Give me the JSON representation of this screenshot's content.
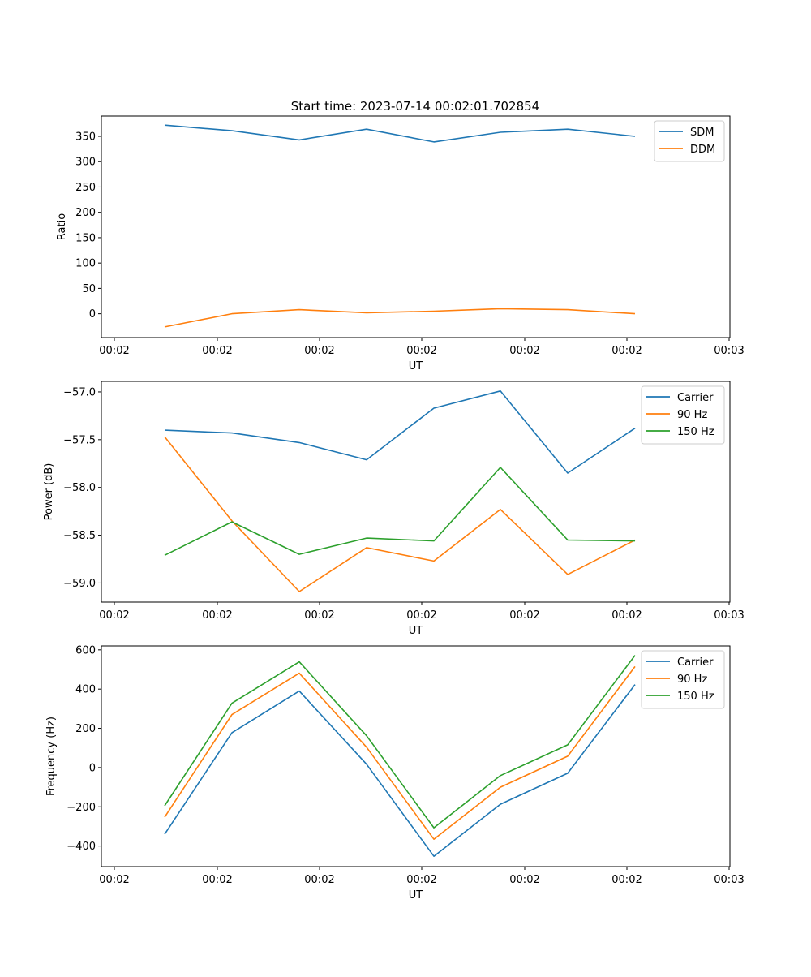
{
  "figure": {
    "title": "Start time: 2023-07-14 00:02:01.702854"
  },
  "chart_data": [
    {
      "type": "line",
      "title": "Start time: 2023-07-14 00:02:01.702854",
      "xlabel": "UT",
      "ylabel": "Ratio",
      "x": [
        1,
        2,
        3,
        4,
        5,
        6,
        7,
        8
      ],
      "xlim": [
        0.8,
        9.2
      ],
      "xticks": [
        1,
        2.5,
        4,
        5.5,
        7,
        8.5,
        10
      ],
      "xtick_labels": [
        "00:02",
        "00:02",
        "00:02",
        "00:02",
        "00:02",
        "00:02",
        "00:03"
      ],
      "ylim": [
        -47,
        390
      ],
      "yticks": [
        0,
        50,
        100,
        150,
        200,
        250,
        300,
        350
      ],
      "ytick_labels": [
        "0",
        "50",
        "100",
        "150",
        "200",
        "250",
        "300",
        "350"
      ],
      "grid": false,
      "legend": "top-right",
      "series": [
        {
          "name": "SDM",
          "color": "#1f77b4",
          "values": [
            372,
            361,
            343,
            364,
            339,
            358,
            364,
            350
          ]
        },
        {
          "name": "DDM",
          "color": "#ff7f0e",
          "values": [
            -26,
            0,
            8,
            2,
            5,
            10,
            8,
            0
          ]
        }
      ]
    },
    {
      "type": "line",
      "title": "",
      "xlabel": "UT",
      "ylabel": "Power (dB)",
      "x": [
        1,
        2,
        3,
        4,
        5,
        6,
        7,
        8
      ],
      "ylim": [
        -59.2,
        -56.89
      ],
      "yticks": [
        -59.0,
        -58.5,
        -58.0,
        -57.5,
        -57.0
      ],
      "ytick_labels": [
        "−59.0",
        "−58.5",
        "−58.0",
        "−57.5",
        "−57.0"
      ],
      "xtick_labels": [
        "00:02",
        "00:02",
        "00:02",
        "00:02",
        "00:02",
        "00:02",
        "00:03"
      ],
      "grid": false,
      "legend": "top-right",
      "series": [
        {
          "name": "Carrier",
          "color": "#1f77b4",
          "values": [
            -57.4,
            -57.43,
            -57.53,
            -57.71,
            -57.17,
            -56.99,
            -57.85,
            -57.38
          ]
        },
        {
          "name": "90 Hz",
          "color": "#ff7f0e",
          "values": [
            -57.47,
            -58.35,
            -59.09,
            -58.63,
            -58.77,
            -58.23,
            -58.91,
            -58.55
          ]
        },
        {
          "name": "150 Hz",
          "color": "#2ca02c",
          "values": [
            -58.71,
            -58.36,
            -58.7,
            -58.53,
            -58.56,
            -57.79,
            -58.55,
            -58.56
          ]
        }
      ]
    },
    {
      "type": "line",
      "title": "",
      "xlabel": "UT",
      "ylabel": "Frequency (Hz)",
      "x": [
        1,
        2,
        3,
        4,
        5,
        6,
        7,
        8
      ],
      "ylim": [
        -505,
        620
      ],
      "yticks": [
        -400,
        -200,
        0,
        200,
        400,
        600
      ],
      "ytick_labels": [
        "−400",
        "−200",
        "0",
        "200",
        "400",
        "600"
      ],
      "xtick_labels": [
        "00:02",
        "00:02",
        "00:02",
        "00:02",
        "00:02",
        "00:02",
        "00:03"
      ],
      "grid": false,
      "legend": "top-right",
      "series": [
        {
          "name": "Carrier",
          "color": "#1f77b4",
          "values": [
            -340,
            178,
            390,
            17,
            -452,
            -187,
            -29,
            423
          ]
        },
        {
          "name": "90 Hz",
          "color": "#ff7f0e",
          "values": [
            -253,
            270,
            481,
            104,
            -365,
            -100,
            58,
            515
          ]
        },
        {
          "name": "150 Hz",
          "color": "#2ca02c",
          "values": [
            -195,
            328,
            539,
            162,
            -307,
            -41,
            116,
            572
          ]
        }
      ]
    }
  ]
}
